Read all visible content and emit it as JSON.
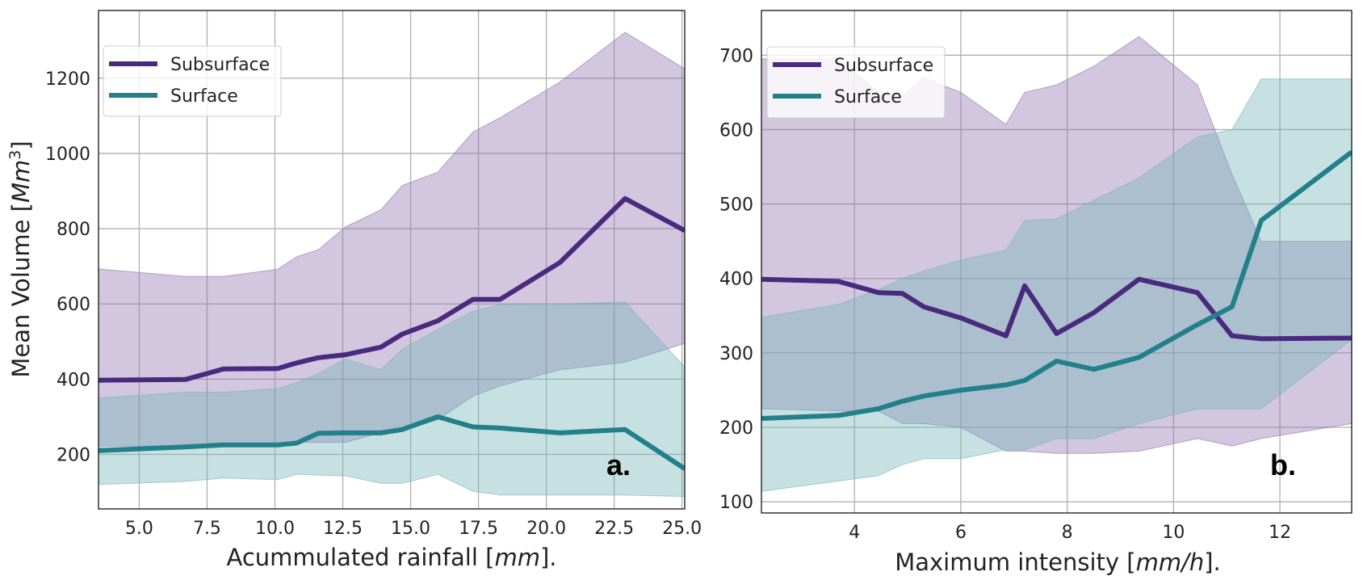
{
  "chart_data": [
    {
      "type": "line",
      "panel_label": "a.",
      "xlabel_text": "Acummulated rainfall [",
      "xlabel_unit": "mm",
      "xlabel_suffix": "].",
      "ylabel_text": "Mean Volume [",
      "ylabel_unit": "Mm",
      "ylabel_exp": "3",
      "ylabel_suffix": "]",
      "xlim": [
        3.5,
        25.1
      ],
      "ylim": [
        55,
        1380
      ],
      "xticks": [
        5.0,
        7.5,
        10.0,
        12.5,
        15.0,
        17.5,
        20.0,
        22.5,
        25.0
      ],
      "xtick_labels": [
        "5.0",
        "7.5",
        "10.0",
        "12.5",
        "15.0",
        "17.5",
        "20.0",
        "22.5",
        "25.0"
      ],
      "yticks": [
        200,
        400,
        600,
        800,
        1000,
        1200
      ],
      "ytick_labels": [
        "200",
        "400",
        "600",
        "800",
        "1000",
        "1200"
      ],
      "grid": true,
      "legend_position": "top-left",
      "series": [
        {
          "name": "Subsurface",
          "color": "#4a2a7e",
          "band_color": "#8e74ac",
          "x": [
            3.5,
            6.7,
            8.1,
            10.1,
            10.8,
            11.6,
            12.6,
            13.9,
            14.7,
            16.0,
            17.3,
            18.3,
            20.5,
            22.9,
            25.1
          ],
          "y": [
            397,
            399,
            427,
            428,
            443,
            457,
            465,
            485,
            520,
            555,
            612,
            612,
            710,
            880,
            795
          ],
          "upper": [
            693,
            673,
            673,
            692,
            725,
            744,
            805,
            850,
            915,
            950,
            1057,
            1095,
            1190,
            1322,
            1225
          ],
          "lower": [
            222,
            222,
            225,
            225,
            232,
            232,
            232,
            258,
            263,
            292,
            355,
            382,
            425,
            445,
            495
          ]
        },
        {
          "name": "Surface",
          "color": "#22808a",
          "band_color": "#73b3ba",
          "x": [
            3.5,
            6.7,
            8.1,
            10.1,
            10.8,
            11.6,
            12.6,
            13.9,
            14.7,
            16.0,
            17.3,
            18.3,
            20.5,
            22.9,
            25.1
          ],
          "y": [
            210,
            220,
            225,
            225,
            230,
            256,
            257,
            257,
            266,
            300,
            273,
            270,
            257,
            266,
            162
          ],
          "upper": [
            350,
            365,
            365,
            375,
            390,
            415,
            453,
            425,
            480,
            532,
            580,
            598,
            600,
            605,
            432
          ],
          "lower": [
            120,
            128,
            137,
            133,
            147,
            145,
            143,
            123,
            123,
            147,
            102,
            92,
            92,
            92,
            88
          ]
        }
      ]
    },
    {
      "type": "line",
      "panel_label": "b.",
      "xlabel_text": "Maximum intensity [",
      "xlabel_unit": "mm/h",
      "xlabel_suffix": "].",
      "xlim": [
        2.25,
        13.35
      ],
      "ylim": [
        85,
        760
      ],
      "xticks": [
        4,
        6,
        8,
        10,
        12
      ],
      "xtick_labels": [
        "4",
        "6",
        "8",
        "10",
        "12"
      ],
      "yticks": [
        100,
        200,
        300,
        400,
        500,
        600,
        700
      ],
      "ytick_labels": [
        "100",
        "200",
        "300",
        "400",
        "500",
        "600",
        "700"
      ],
      "grid": true,
      "legend_position": "top-left",
      "series": [
        {
          "name": "Subsurface",
          "color": "#4a2a7e",
          "band_color": "#8e74ac",
          "x": [
            2.25,
            3.7,
            4.45,
            4.9,
            5.3,
            6.0,
            6.85,
            7.2,
            7.8,
            8.5,
            9.35,
            10.45,
            11.1,
            11.65,
            13.35
          ],
          "y": [
            399,
            396,
            381,
            380,
            362,
            347,
            323,
            390,
            326,
            354,
            399,
            381,
            323,
            319,
            320
          ],
          "upper": [
            695,
            695,
            650,
            645,
            670,
            650,
            607,
            650,
            660,
            685,
            725,
            660,
            540,
            450,
            450
          ],
          "lower": [
            225,
            222,
            222,
            205,
            205,
            200,
            168,
            168,
            165,
            165,
            168,
            185,
            175,
            185,
            205
          ]
        },
        {
          "name": "Surface",
          "color": "#22808a",
          "band_color": "#73b3ba",
          "x": [
            2.25,
            3.7,
            4.45,
            4.9,
            5.3,
            6.0,
            6.85,
            7.2,
            7.8,
            8.5,
            9.35,
            10.45,
            11.1,
            11.65,
            13.35
          ],
          "y": [
            212,
            216,
            225,
            235,
            242,
            250,
            257,
            263,
            289,
            278,
            294,
            338,
            362,
            478,
            570
          ],
          "upper": [
            348,
            365,
            385,
            400,
            410,
            425,
            438,
            478,
            480,
            505,
            535,
            590,
            600,
            668,
            668
          ],
          "lower": [
            114,
            128,
            135,
            150,
            158,
            158,
            170,
            170,
            185,
            185,
            205,
            225,
            225,
            225,
            318
          ]
        }
      ]
    }
  ]
}
